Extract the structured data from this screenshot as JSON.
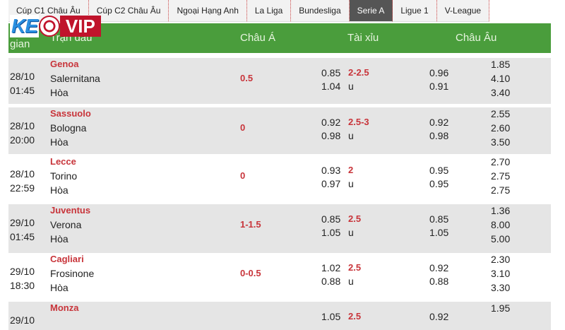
{
  "tabs": [
    "Cúp C1 Châu Âu",
    "Cúp C2 Châu Âu",
    "Ngoại Hạng Anh",
    "La Liga",
    "Bundesliga",
    "Serie A",
    "Ligue 1",
    "V-League"
  ],
  "active_tab": "Serie A",
  "logo": {
    "left": "KEO",
    "right": "VIP"
  },
  "header": {
    "time": "gian",
    "match": "Trận đấu",
    "asian": "Châu Á",
    "ou": "Tài xỉu",
    "euro": "Châu Âu"
  },
  "colors": {
    "header_green": "#4a9d3c",
    "accent_red": "#c8343a",
    "logo_blue": "#2a8fe0",
    "logo_red": "#c0142c"
  },
  "matches": [
    {
      "date": "28/10",
      "time": "01:45",
      "home": "Genoa",
      "away": "Salernitana",
      "draw": "Hòa",
      "asian": "0.5",
      "ou_over": "0.85",
      "ou_line": "2-2.5",
      "ou_under": "1.04",
      "ou_u": "u",
      "eu_a": "0.96",
      "eu_b": "0.91",
      "eu_1": "1.85",
      "eu_2": "4.10",
      "eu_3": "3.40"
    },
    {
      "date": "28/10",
      "time": "20:00",
      "home": "Sassuolo",
      "away": "Bologna",
      "draw": "Hòa",
      "asian": "0",
      "ou_over": "0.92",
      "ou_line": "2.5-3",
      "ou_under": "0.98",
      "ou_u": "u",
      "eu_a": "0.92",
      "eu_b": "0.98",
      "eu_1": "2.55",
      "eu_2": "2.60",
      "eu_3": "3.50"
    },
    {
      "date": "28/10",
      "time": "22:59",
      "home": "Lecce",
      "away": "Torino",
      "draw": "Hòa",
      "asian": "0",
      "ou_over": "0.93",
      "ou_line": "2",
      "ou_under": "0.97",
      "ou_u": "u",
      "eu_a": "0.95",
      "eu_b": "0.95",
      "eu_1": "2.70",
      "eu_2": "2.75",
      "eu_3": "2.75"
    },
    {
      "date": "29/10",
      "time": "01:45",
      "home": "Juventus",
      "away": "Verona",
      "draw": "Hòa",
      "asian": "1-1.5",
      "ou_over": "0.85",
      "ou_line": "2.5",
      "ou_under": "1.05",
      "ou_u": "u",
      "eu_a": "0.85",
      "eu_b": "1.05",
      "eu_1": "1.36",
      "eu_2": "8.00",
      "eu_3": "5.00"
    },
    {
      "date": "29/10",
      "time": "18:30",
      "home": "Cagliari",
      "away": "Frosinone",
      "draw": "Hòa",
      "asian": "0-0.5",
      "ou_over": "1.02",
      "ou_line": "2.5",
      "ou_under": "0.88",
      "ou_u": "u",
      "eu_a": "0.92",
      "eu_b": "0.88",
      "eu_1": "2.30",
      "eu_2": "3.10",
      "eu_3": "3.30"
    },
    {
      "date": "29/10",
      "time": "",
      "home": "Monza",
      "away": "",
      "draw": "",
      "asian": "",
      "ou_over": "1.05",
      "ou_line": "2.5",
      "ou_under": "",
      "ou_u": "",
      "eu_a": "0.92",
      "eu_b": "",
      "eu_1": "1.95",
      "eu_2": "",
      "eu_3": ""
    }
  ]
}
